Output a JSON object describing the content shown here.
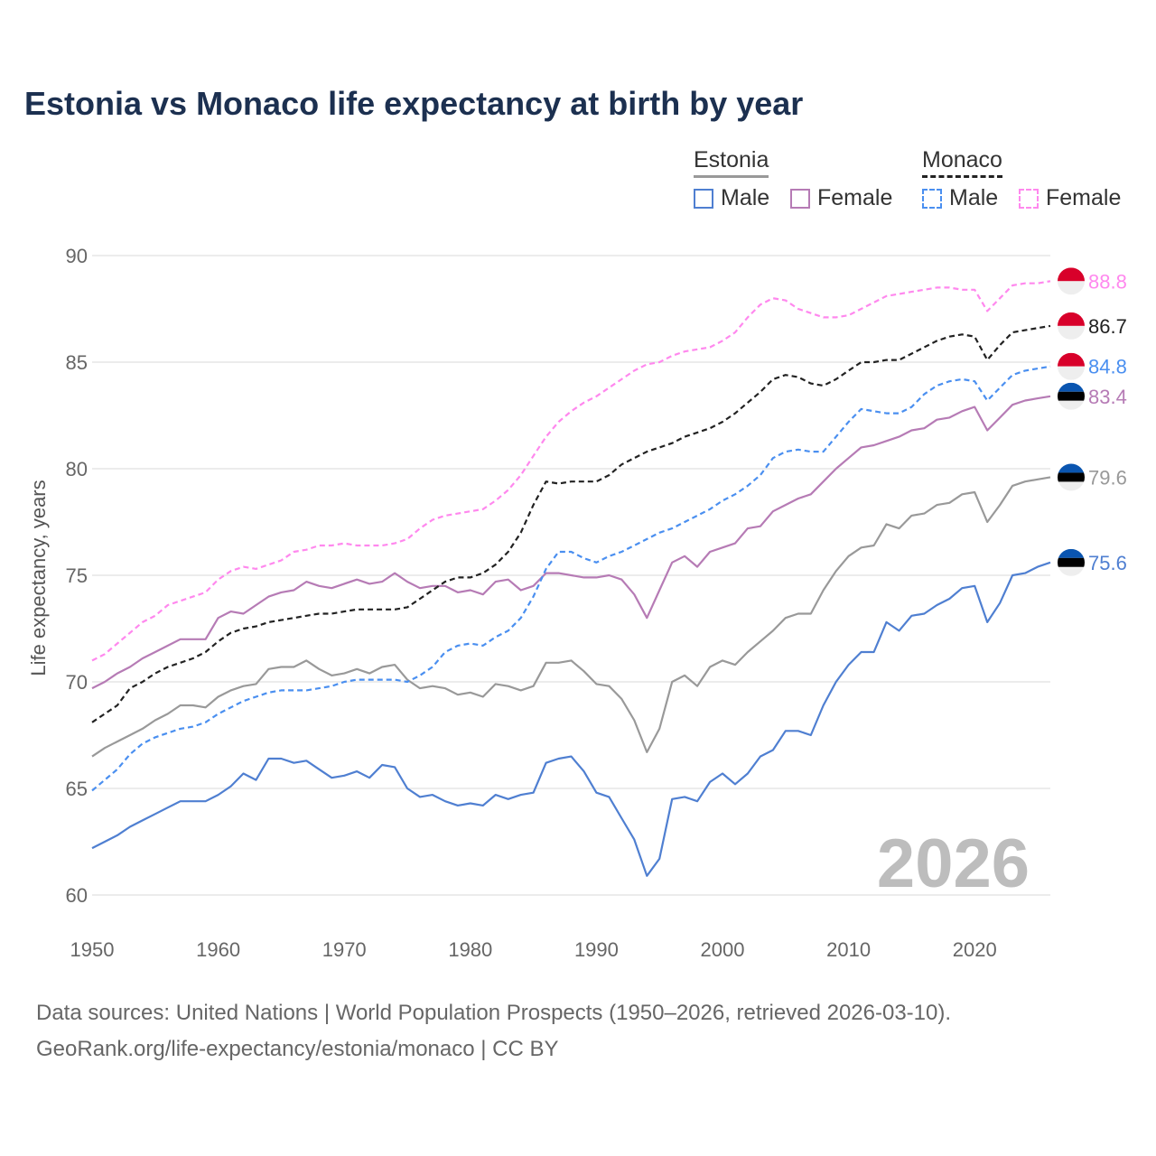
{
  "chart_data": {
    "type": "line",
    "title": "Estonia vs Monaco life expectancy at birth by year",
    "ylabel": "Life expectancy, years",
    "xlabel": "",
    "xlim": [
      1950,
      2026
    ],
    "ylim": [
      60,
      90
    ],
    "x_ticks": [
      "1950",
      "1960",
      "1970",
      "1980",
      "1990",
      "2000",
      "2010",
      "2020"
    ],
    "y_ticks": [
      "60",
      "65",
      "70",
      "75",
      "80",
      "85",
      "90"
    ],
    "grid": true,
    "year_watermark": "2026",
    "legend": {
      "placement": "top-right",
      "groups": [
        {
          "name": "Estonia",
          "items": [
            "Male",
            "Female"
          ]
        },
        {
          "name": "Monaco",
          "items": [
            "Male",
            "Female"
          ]
        }
      ]
    },
    "x_start": 1950,
    "series": [
      {
        "name": "Estonia total",
        "country": "Estonia",
        "color": "#999999",
        "dash": false,
        "flag": "estonia",
        "end_label": "79.6",
        "values": [
          66.5,
          66.9,
          67.2,
          67.5,
          67.8,
          68.2,
          68.5,
          68.9,
          68.9,
          68.8,
          69.3,
          69.6,
          69.8,
          69.9,
          70.6,
          70.7,
          70.7,
          71.0,
          70.6,
          70.3,
          70.4,
          70.6,
          70.4,
          70.7,
          70.8,
          70.1,
          69.7,
          69.8,
          69.7,
          69.4,
          69.5,
          69.3,
          69.9,
          69.8,
          69.6,
          69.8,
          70.9,
          70.9,
          71.0,
          70.5,
          69.9,
          69.8,
          69.2,
          68.2,
          66.7,
          67.8,
          70.0,
          70.3,
          69.8,
          70.7,
          71.0,
          70.8,
          71.4,
          71.9,
          72.4,
          73.0,
          73.2,
          73.2,
          74.3,
          75.2,
          75.9,
          76.3,
          76.4,
          77.4,
          77.2,
          77.8,
          77.9,
          78.3,
          78.4,
          78.8,
          78.9,
          77.5,
          78.3,
          79.2,
          79.4,
          79.5,
          79.6
        ]
      },
      {
        "name": "Estonia male",
        "country": "Estonia",
        "color": "#4f7fd1",
        "dash": false,
        "flag": "estonia",
        "end_label": "75.6",
        "values": [
          62.2,
          62.5,
          62.8,
          63.2,
          63.5,
          63.8,
          64.1,
          64.4,
          64.4,
          64.4,
          64.7,
          65.1,
          65.7,
          65.4,
          66.4,
          66.4,
          66.2,
          66.3,
          65.9,
          65.5,
          65.6,
          65.8,
          65.5,
          66.1,
          66.0,
          65.0,
          64.6,
          64.7,
          64.4,
          64.2,
          64.3,
          64.2,
          64.7,
          64.5,
          64.7,
          64.8,
          66.2,
          66.4,
          66.5,
          65.8,
          64.8,
          64.6,
          63.6,
          62.6,
          60.9,
          61.7,
          64.5,
          64.6,
          64.4,
          65.3,
          65.7,
          65.2,
          65.7,
          66.5,
          66.8,
          67.7,
          67.7,
          67.5,
          68.9,
          70.0,
          70.8,
          71.4,
          71.4,
          72.8,
          72.4,
          73.1,
          73.2,
          73.6,
          73.9,
          74.4,
          74.5,
          72.8,
          73.7,
          75.0,
          75.1,
          75.4,
          75.6
        ]
      },
      {
        "name": "Estonia female",
        "country": "Estonia",
        "color": "#b67bb5",
        "dash": false,
        "flag": "estonia",
        "end_label": "83.4",
        "values": [
          69.7,
          70.0,
          70.4,
          70.7,
          71.1,
          71.4,
          71.7,
          72.0,
          72.0,
          72.0,
          73.0,
          73.3,
          73.2,
          73.6,
          74.0,
          74.2,
          74.3,
          74.7,
          74.5,
          74.4,
          74.6,
          74.8,
          74.6,
          74.7,
          75.1,
          74.7,
          74.4,
          74.5,
          74.5,
          74.2,
          74.3,
          74.1,
          74.7,
          74.8,
          74.3,
          74.5,
          75.1,
          75.1,
          75.0,
          74.9,
          74.9,
          75.0,
          74.8,
          74.1,
          73.0,
          74.3,
          75.6,
          75.9,
          75.4,
          76.1,
          76.3,
          76.5,
          77.2,
          77.3,
          78.0,
          78.3,
          78.6,
          78.8,
          79.4,
          80.0,
          80.5,
          81.0,
          81.1,
          81.3,
          81.5,
          81.8,
          81.9,
          82.3,
          82.4,
          82.7,
          82.9,
          81.8,
          82.4,
          83.0,
          83.2,
          83.3,
          83.4
        ]
      },
      {
        "name": "Monaco total",
        "country": "Monaco",
        "color": "#222222",
        "dash": true,
        "flag": "monaco",
        "end_label": "86.7",
        "values": [
          68.1,
          68.5,
          68.9,
          69.7,
          70.0,
          70.4,
          70.7,
          70.9,
          71.1,
          71.4,
          71.9,
          72.3,
          72.5,
          72.6,
          72.8,
          72.9,
          73.0,
          73.1,
          73.2,
          73.2,
          73.3,
          73.4,
          73.4,
          73.4,
          73.4,
          73.5,
          73.9,
          74.3,
          74.7,
          74.9,
          74.9,
          75.1,
          75.5,
          76.1,
          77.0,
          78.3,
          79.4,
          79.3,
          79.4,
          79.4,
          79.4,
          79.7,
          80.2,
          80.5,
          80.8,
          81.0,
          81.2,
          81.5,
          81.7,
          81.9,
          82.2,
          82.6,
          83.1,
          83.6,
          84.2,
          84.4,
          84.3,
          84.0,
          83.9,
          84.2,
          84.6,
          85.0,
          85.0,
          85.1,
          85.1,
          85.4,
          85.7,
          86.0,
          86.2,
          86.3,
          86.2,
          85.1,
          85.8,
          86.4,
          86.5,
          86.6,
          86.7
        ]
      },
      {
        "name": "Monaco male",
        "country": "Monaco",
        "color": "#4a8ff0",
        "dash": true,
        "flag": "monaco",
        "end_label": "84.8",
        "values": [
          64.9,
          65.4,
          65.9,
          66.6,
          67.1,
          67.4,
          67.6,
          67.8,
          67.9,
          68.1,
          68.5,
          68.8,
          69.1,
          69.3,
          69.5,
          69.6,
          69.6,
          69.6,
          69.7,
          69.8,
          70.0,
          70.1,
          70.1,
          70.1,
          70.1,
          70.0,
          70.3,
          70.7,
          71.4,
          71.7,
          71.8,
          71.7,
          72.1,
          72.4,
          73.0,
          74.0,
          75.3,
          76.1,
          76.1,
          75.8,
          75.6,
          75.9,
          76.1,
          76.4,
          76.7,
          77.0,
          77.2,
          77.5,
          77.8,
          78.1,
          78.5,
          78.8,
          79.2,
          79.7,
          80.5,
          80.8,
          80.9,
          80.8,
          80.8,
          81.5,
          82.2,
          82.8,
          82.7,
          82.6,
          82.6,
          82.9,
          83.5,
          83.9,
          84.1,
          84.2,
          84.1,
          83.2,
          83.8,
          84.4,
          84.6,
          84.7,
          84.8
        ]
      },
      {
        "name": "Monaco female",
        "country": "Monaco",
        "color": "#ff88ee",
        "dash": true,
        "flag": "monaco",
        "end_label": "88.8",
        "values": [
          71.0,
          71.3,
          71.8,
          72.3,
          72.8,
          73.1,
          73.6,
          73.8,
          74.0,
          74.2,
          74.8,
          75.2,
          75.4,
          75.3,
          75.5,
          75.7,
          76.1,
          76.2,
          76.4,
          76.4,
          76.5,
          76.4,
          76.4,
          76.4,
          76.5,
          76.7,
          77.2,
          77.6,
          77.8,
          77.9,
          78.0,
          78.1,
          78.5,
          79.0,
          79.7,
          80.6,
          81.5,
          82.2,
          82.7,
          83.1,
          83.4,
          83.8,
          84.2,
          84.6,
          84.9,
          85.0,
          85.3,
          85.5,
          85.6,
          85.7,
          86.0,
          86.4,
          87.1,
          87.7,
          88.0,
          87.9,
          87.5,
          87.3,
          87.1,
          87.1,
          87.2,
          87.5,
          87.8,
          88.1,
          88.2,
          88.3,
          88.4,
          88.5,
          88.5,
          88.4,
          88.4,
          87.4,
          88.0,
          88.6,
          88.7,
          88.7,
          88.8
        ]
      }
    ]
  },
  "legend_colors": {
    "estonia_male": "#4f7fd1",
    "estonia_female": "#b67bb5",
    "monaco_male": "#4a8ff0",
    "monaco_female": "#ff88ee"
  },
  "source": {
    "line1": "Data sources: United Nations | World Population Prospects (1950–2026, retrieved 2026-03-10).",
    "line2": "GeoRank.org/life-expectancy/estonia/monaco | CC BY"
  }
}
